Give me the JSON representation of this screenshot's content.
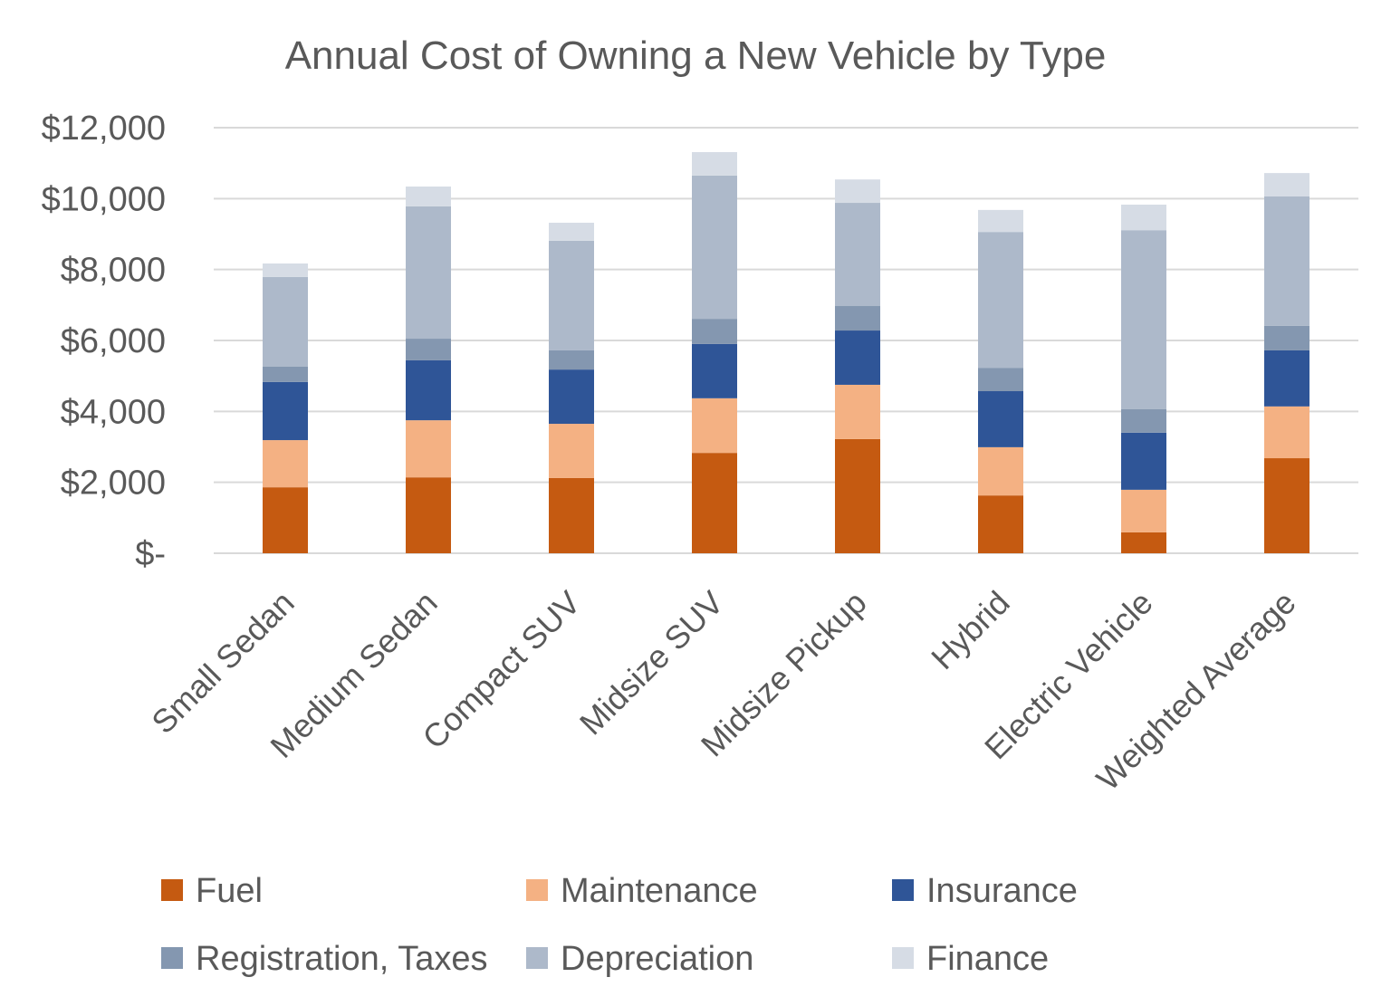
{
  "chart_data": {
    "type": "bar",
    "stacked": true,
    "title": "Annual Cost of Owning a New Vehicle by Type",
    "xlabel": "",
    "ylabel": "",
    "ylim": [
      0,
      12000
    ],
    "yticks": [
      0,
      2000,
      4000,
      6000,
      8000,
      10000,
      12000
    ],
    "ytick_labels": [
      "$-",
      "$2,000",
      "$4,000",
      "$6,000",
      "$8,000",
      "$10,000",
      "$12,000"
    ],
    "grid": true,
    "legend_position": "bottom",
    "categories": [
      "Small Sedan",
      "Medium Sedan",
      "Compact SUV",
      "Midsize SUV",
      "Midsize Pickup",
      "Hybrid",
      "Electric Vehicle",
      "Weighted Average"
    ],
    "series": [
      {
        "name": "Fuel",
        "color": "#C55A11",
        "values": [
          1860,
          2140,
          2120,
          2830,
          3220,
          1630,
          590,
          2680
        ]
      },
      {
        "name": "Maintenance",
        "color": "#F4B183",
        "values": [
          1330,
          1610,
          1530,
          1540,
          1530,
          1360,
          1200,
          1460
        ]
      },
      {
        "name": "Insurance",
        "color": "#2F5597",
        "values": [
          1640,
          1690,
          1530,
          1530,
          1530,
          1580,
          1610,
          1580
        ]
      },
      {
        "name": "Registration, Taxes",
        "color": "#8497B0",
        "values": [
          430,
          610,
          540,
          710,
          690,
          660,
          660,
          690
        ]
      },
      {
        "name": "Depreciation",
        "color": "#ADB9CA",
        "values": [
          2530,
          3730,
          3090,
          4040,
          2910,
          3830,
          5050,
          3650
        ]
      },
      {
        "name": "Finance",
        "color": "#D6DCE5",
        "values": [
          380,
          560,
          510,
          660,
          660,
          620,
          720,
          660
        ]
      }
    ]
  }
}
